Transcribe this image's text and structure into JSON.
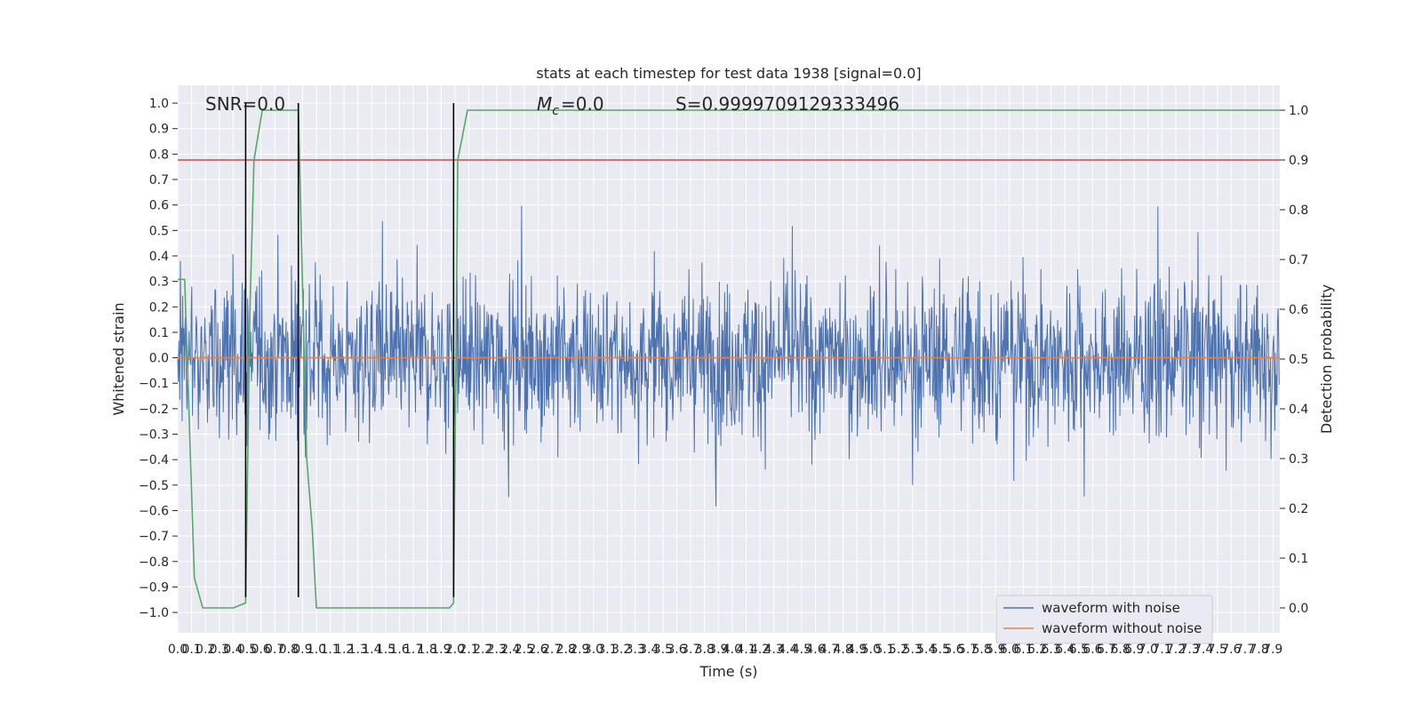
{
  "chart_data": {
    "type": "line",
    "title": "stats at each timestep for test data 1938 [signal=0.0]",
    "xlabel": "Time (s)",
    "ylabel": "Whitened strain",
    "y2label": "Detection probability",
    "xlim": [
      0.0,
      7.95
    ],
    "ylim": [
      -1.08,
      1.07
    ],
    "y2lim": [
      -0.05,
      1.05
    ],
    "x_ticks": [
      0.0,
      0.1,
      0.2,
      0.3,
      0.4,
      0.5,
      0.6,
      0.7,
      0.8,
      0.9,
      1.0,
      1.1,
      1.2,
      1.3,
      1.4,
      1.5,
      1.6,
      1.7,
      1.8,
      1.9,
      2.0,
      2.1,
      2.2,
      2.3,
      2.4,
      2.5,
      2.6,
      2.7,
      2.8,
      2.9,
      3.0,
      3.1,
      3.2,
      3.3,
      3.4,
      3.5,
      3.6,
      3.7,
      3.8,
      3.9,
      4.0,
      4.1,
      4.2,
      4.3,
      4.4,
      4.5,
      4.6,
      4.7,
      4.8,
      4.9,
      5.0,
      5.1,
      5.2,
      5.3,
      5.4,
      5.5,
      5.6,
      5.7,
      5.8,
      5.9,
      6.0,
      6.1,
      6.2,
      6.3,
      6.4,
      6.5,
      6.6,
      6.7,
      6.8,
      6.9,
      7.0,
      7.1,
      7.2,
      7.3,
      7.4,
      7.5,
      7.6,
      7.7,
      7.8,
      7.9
    ],
    "y_ticks": [
      -1.0,
      -0.9,
      -0.8,
      -0.7,
      -0.6,
      -0.5,
      -0.4,
      -0.3,
      -0.2,
      -0.1,
      0.0,
      0.1,
      0.2,
      0.3,
      0.4,
      0.5,
      0.6,
      0.7,
      0.8,
      0.9,
      1.0
    ],
    "y2_ticks": [
      0.0,
      0.1,
      0.2,
      0.3,
      0.4,
      0.5,
      0.6,
      0.7,
      0.8,
      0.9,
      1.0
    ],
    "grid": true,
    "annotations": {
      "snr": "SNR=0.0",
      "mc": "=0.0",
      "s": "S=0.9999709129333496"
    },
    "threshold": {
      "y2": 0.9,
      "color": "#c44e52"
    },
    "vertical_markers": [
      {
        "x": 0.49,
        "ymin": -0.94,
        "ymax": 1.0
      },
      {
        "x": 0.87,
        "ymin": -0.94,
        "ymax": 1.0
      },
      {
        "x": 1.99,
        "ymin": -0.94,
        "ymax": 1.0
      }
    ],
    "series": [
      {
        "name": "waveform with noise",
        "color": "#4c72b0",
        "sample_rate": 256,
        "envelope_upper": 0.42,
        "envelope_lower": -0.42,
        "peak_extent": [
          -0.94,
          0.88
        ]
      },
      {
        "name": "waveform without noise",
        "color": "#dd8452",
        "value": 0.0
      },
      {
        "color": "#55a868",
        "axis": "y2",
        "x": [
          0.0,
          0.05,
          0.12,
          0.18,
          0.25,
          0.4,
          0.49,
          0.52,
          0.55,
          0.61,
          0.7,
          0.87,
          0.93,
          0.97,
          1.0,
          1.5,
          1.96,
          1.99,
          2.02,
          2.09,
          2.2,
          7.95
        ],
        "values": [
          0.66,
          0.66,
          0.06,
          0.0,
          0.0,
          0.0,
          0.01,
          0.59,
          0.9,
          1.0,
          1.0,
          1.0,
          0.3,
          0.16,
          0.0,
          0.0,
          0.0,
          0.01,
          0.9,
          1.0,
          1.0,
          1.0
        ]
      }
    ],
    "legend": {
      "location": "lower-right"
    }
  }
}
